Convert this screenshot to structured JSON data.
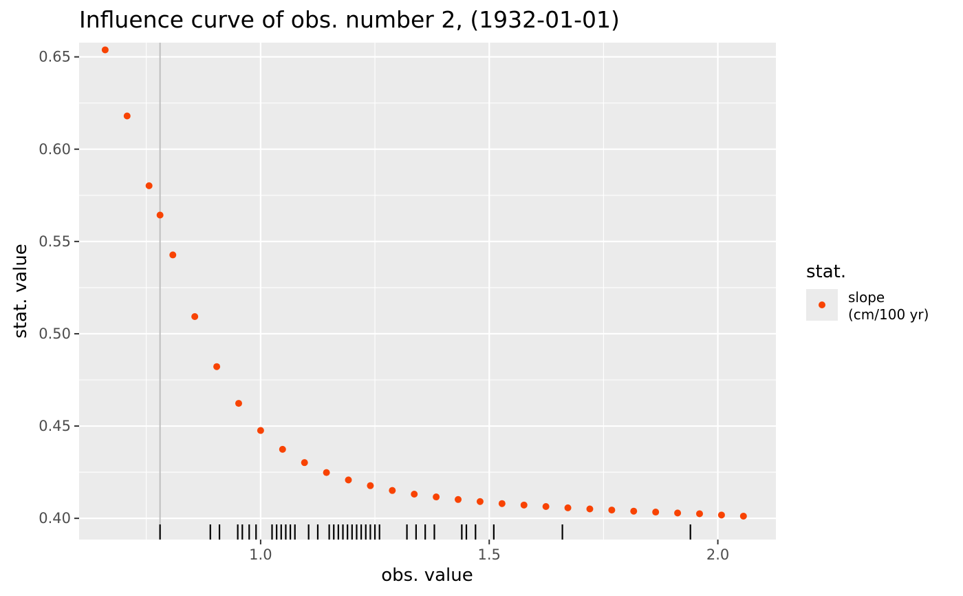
{
  "chart_data": {
    "type": "scatter",
    "title": "Influence curve of obs. number 2, (1932-01-01)",
    "xlabel": "obs. value",
    "ylabel": "stat. value",
    "xlim": [
      0.603,
      2.127
    ],
    "ylim": [
      0.3885,
      0.6577
    ],
    "x_ticks": [
      1.0,
      1.5,
      2.0
    ],
    "x_tick_labels": [
      "1.0",
      "1.5",
      "2.0"
    ],
    "y_ticks": [
      0.4,
      0.45,
      0.5,
      0.55,
      0.6,
      0.65
    ],
    "y_tick_labels": [
      "0.40",
      "0.45",
      "0.50",
      "0.55",
      "0.60",
      "0.65"
    ],
    "grid": true,
    "color": "#f84303",
    "panel_background": "#ebebeb",
    "vline_x": 0.78,
    "vline_color": "#bebebe",
    "legend": {
      "title": "stat.",
      "position": "right",
      "entries": [
        {
          "label_lines": [
            "slope",
            "(cm/100 yr)"
          ],
          "color": "#f84303"
        }
      ]
    },
    "series": [
      {
        "name": "slope (cm/100 yr)",
        "x": [
          0.66,
          0.708,
          0.756,
          0.78,
          0.808,
          0.856,
          0.904,
          0.952,
          1.0,
          1.048,
          1.096,
          1.144,
          1.192,
          1.24,
          1.288,
          1.336,
          1.384,
          1.432,
          1.48,
          1.528,
          1.576,
          1.624,
          1.672,
          1.72,
          1.768,
          1.816,
          1.864,
          1.912,
          1.96,
          2.008,
          2.056
        ],
        "y": [
          0.6538,
          0.618,
          0.5802,
          0.5643,
          0.5427,
          0.5093,
          0.4822,
          0.4623,
          0.4476,
          0.4374,
          0.4302,
          0.4248,
          0.4208,
          0.4177,
          0.4151,
          0.4131,
          0.4116,
          0.4102,
          0.4091,
          0.408,
          0.4072,
          0.4064,
          0.4057,
          0.4051,
          0.4045,
          0.4039,
          0.4034,
          0.4029,
          0.4025,
          0.4018,
          0.4012
        ]
      }
    ],
    "rug_x": [
      0.78,
      0.89,
      0.91,
      0.95,
      0.96,
      0.975,
      0.99,
      1.025,
      1.035,
      1.045,
      1.055,
      1.065,
      1.075,
      1.105,
      1.125,
      1.15,
      1.16,
      1.17,
      1.18,
      1.19,
      1.2,
      1.21,
      1.22,
      1.23,
      1.24,
      1.25,
      1.26,
      1.32,
      1.34,
      1.36,
      1.38,
      1.44,
      1.45,
      1.47,
      1.51,
      1.66,
      1.94
    ]
  }
}
